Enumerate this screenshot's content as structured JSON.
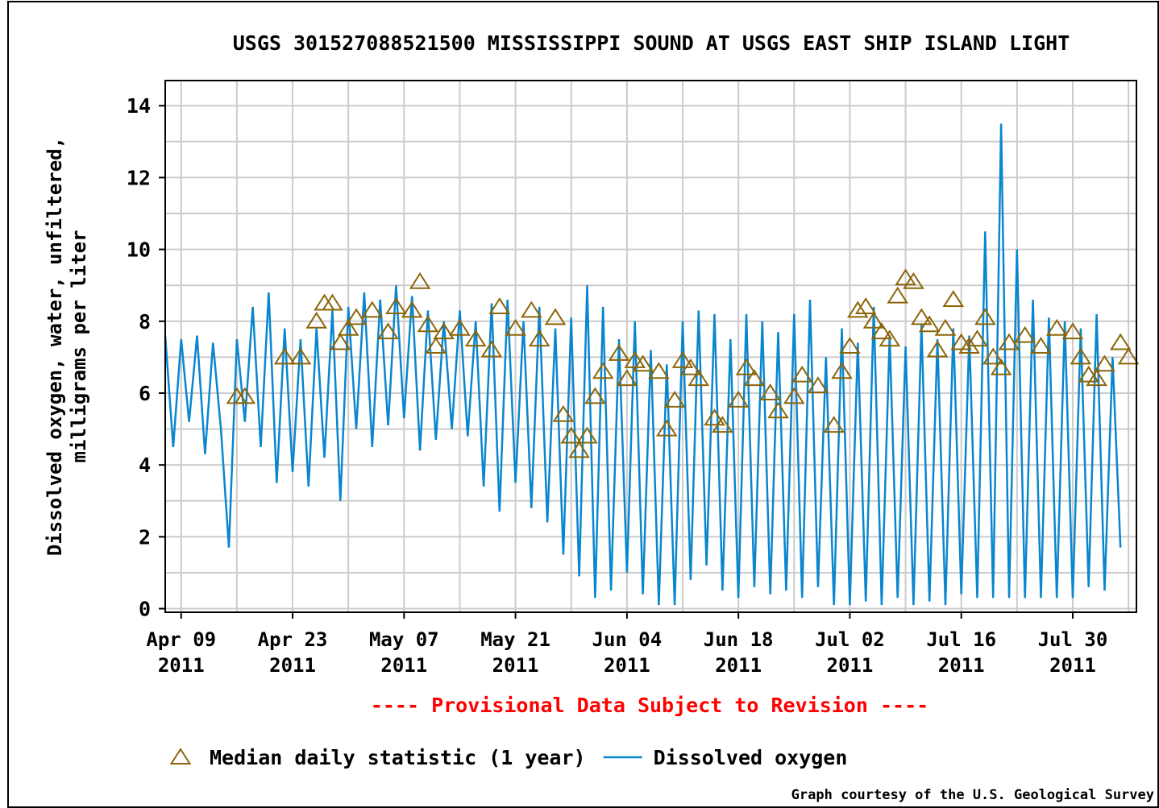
{
  "chart_data": {
    "type": "line",
    "title": "USGS 301527088521500 MISSISSIPPI SOUND AT USGS EAST SHIP ISLAND LIGHT",
    "ylabel": "Dissolved oxygen, water, unfiltered,\nmilligrams per liter",
    "note": "---- Provisional Data Subject to Revision ----",
    "credit": "Graph courtesy of the U.S. Geological Survey",
    "xlim": [
      "2011-04-07",
      "2011-08-07"
    ],
    "xticks": [
      {
        "value": "2011-04-09",
        "label": "Apr 09\n2011"
      },
      {
        "value": "2011-04-23",
        "label": "Apr 23\n2011"
      },
      {
        "value": "2011-05-07",
        "label": "May 07\n2011"
      },
      {
        "value": "2011-05-21",
        "label": "May 21\n2011"
      },
      {
        "value": "2011-06-04",
        "label": "Jun 04\n2011"
      },
      {
        "value": "2011-06-18",
        "label": "Jun 18\n2011"
      },
      {
        "value": "2011-07-02",
        "label": "Jul 02\n2011"
      },
      {
        "value": "2011-07-16",
        "label": "Jul 16\n2011"
      },
      {
        "value": "2011-07-30",
        "label": "Jul 30\n2011"
      }
    ],
    "ylim": [
      -0.1,
      14.7
    ],
    "yticks": [
      0,
      2,
      4,
      6,
      8,
      10,
      12,
      14
    ],
    "grid": true,
    "series": [
      {
        "name": "Median daily statistic (1 year)",
        "color": "#8b6508",
        "marker": "triangle",
        "x": [
          "2011-04-16",
          "2011-04-17",
          "2011-04-22",
          "2011-04-24",
          "2011-04-26",
          "2011-04-27",
          "2011-04-28",
          "2011-04-29",
          "2011-04-30",
          "2011-05-01",
          "2011-05-03",
          "2011-05-05",
          "2011-05-06",
          "2011-05-08",
          "2011-05-09",
          "2011-05-10",
          "2011-05-11",
          "2011-05-12",
          "2011-05-14",
          "2011-05-16",
          "2011-05-18",
          "2011-05-19",
          "2011-05-21",
          "2011-05-23",
          "2011-05-24",
          "2011-05-26",
          "2011-05-27",
          "2011-05-28",
          "2011-05-29",
          "2011-05-30",
          "2011-05-31",
          "2011-06-01",
          "2011-06-03",
          "2011-06-04",
          "2011-06-05",
          "2011-06-06",
          "2011-06-08",
          "2011-06-09",
          "2011-06-10",
          "2011-06-11",
          "2011-06-12",
          "2011-06-13",
          "2011-06-15",
          "2011-06-16",
          "2011-06-18",
          "2011-06-19",
          "2011-06-20",
          "2011-06-22",
          "2011-06-23",
          "2011-06-25",
          "2011-06-26",
          "2011-06-28",
          "2011-06-30",
          "2011-07-01",
          "2011-07-02",
          "2011-07-03",
          "2011-07-04",
          "2011-07-05",
          "2011-07-06",
          "2011-07-07",
          "2011-07-08",
          "2011-07-09",
          "2011-07-10",
          "2011-07-11",
          "2011-07-12",
          "2011-07-13",
          "2011-07-14",
          "2011-07-15",
          "2011-07-16",
          "2011-07-17",
          "2011-07-18",
          "2011-07-19",
          "2011-07-20",
          "2011-07-21",
          "2011-07-22",
          "2011-07-24",
          "2011-07-26",
          "2011-07-28",
          "2011-07-30",
          "2011-07-31",
          "2011-08-01",
          "2011-08-02",
          "2011-08-03",
          "2011-08-05",
          "2011-08-06"
        ],
        "values": [
          5.9,
          5.9,
          7.0,
          7.0,
          8.0,
          8.5,
          8.5,
          7.4,
          7.8,
          8.1,
          8.3,
          7.7,
          8.4,
          8.3,
          9.1,
          7.9,
          7.3,
          7.7,
          7.8,
          7.5,
          7.2,
          8.4,
          7.8,
          8.3,
          7.5,
          8.1,
          5.4,
          4.8,
          4.4,
          4.8,
          5.9,
          6.6,
          7.1,
          6.4,
          6.9,
          6.8,
          6.6,
          5.0,
          5.8,
          6.9,
          6.7,
          6.4,
          5.3,
          5.1,
          5.8,
          6.7,
          6.4,
          6.0,
          5.5,
          5.9,
          6.5,
          6.2,
          5.1,
          6.6,
          7.3,
          8.3,
          8.4,
          8.0,
          7.7,
          7.5,
          8.7,
          9.2,
          9.1,
          8.1,
          7.9,
          7.2,
          7.8,
          8.6,
          7.4,
          7.3,
          7.5,
          8.1,
          7.0,
          6.7,
          7.4,
          7.6,
          7.3,
          7.8,
          7.7,
          7.0,
          6.5,
          6.4,
          6.8,
          7.4,
          7.0
        ]
      },
      {
        "name": "Dissolved oxygen",
        "color": "#0a86cf",
        "x": [
          "2011-04-07",
          "2011-04-08",
          "2011-04-09",
          "2011-04-10",
          "2011-04-11",
          "2011-04-12",
          "2011-04-13",
          "2011-04-14",
          "2011-04-15",
          "2011-04-16",
          "2011-04-17",
          "2011-04-18",
          "2011-04-19",
          "2011-04-20",
          "2011-04-21",
          "2011-04-22",
          "2011-04-23",
          "2011-04-24",
          "2011-04-25",
          "2011-04-26",
          "2011-04-27",
          "2011-04-28",
          "2011-04-29",
          "2011-04-30",
          "2011-05-01",
          "2011-05-02",
          "2011-05-03",
          "2011-05-04",
          "2011-05-05",
          "2011-05-06",
          "2011-05-07",
          "2011-05-08",
          "2011-05-09",
          "2011-05-10",
          "2011-05-11",
          "2011-05-12",
          "2011-05-13",
          "2011-05-14",
          "2011-05-15",
          "2011-05-16",
          "2011-05-17",
          "2011-05-18",
          "2011-05-19",
          "2011-05-20",
          "2011-05-21",
          "2011-05-22",
          "2011-05-23",
          "2011-05-24",
          "2011-05-25",
          "2011-05-26",
          "2011-05-27",
          "2011-05-28",
          "2011-05-29",
          "2011-05-30",
          "2011-05-31",
          "2011-06-01",
          "2011-06-02",
          "2011-06-03",
          "2011-06-04",
          "2011-06-05",
          "2011-06-06",
          "2011-06-07",
          "2011-06-08",
          "2011-06-09",
          "2011-06-10",
          "2011-06-11",
          "2011-06-12",
          "2011-06-13",
          "2011-06-14",
          "2011-06-15",
          "2011-06-16",
          "2011-06-17",
          "2011-06-18",
          "2011-06-19",
          "2011-06-20",
          "2011-06-21",
          "2011-06-22",
          "2011-06-23",
          "2011-06-24",
          "2011-06-25",
          "2011-06-26",
          "2011-06-27",
          "2011-06-28",
          "2011-06-29",
          "2011-06-30",
          "2011-07-01",
          "2011-07-02",
          "2011-07-03",
          "2011-07-04",
          "2011-07-05",
          "2011-07-06",
          "2011-07-07",
          "2011-07-08",
          "2011-07-09",
          "2011-07-10",
          "2011-07-11",
          "2011-07-12",
          "2011-07-13",
          "2011-07-14",
          "2011-07-15",
          "2011-07-16",
          "2011-07-17",
          "2011-07-18",
          "2011-07-19",
          "2011-07-20",
          "2011-07-21",
          "2011-07-22",
          "2011-07-23",
          "2011-07-24",
          "2011-07-25",
          "2011-07-26",
          "2011-07-27",
          "2011-07-28",
          "2011-07-29",
          "2011-07-30",
          "2011-07-31",
          "2011-08-01",
          "2011-08-02",
          "2011-08-03",
          "2011-08-04",
          "2011-08-05"
        ],
        "values": [
          7.6,
          4.5,
          7.5,
          5.2,
          7.6,
          4.3,
          7.4,
          5.0,
          1.7,
          7.5,
          5.2,
          8.4,
          4.5,
          8.8,
          3.5,
          7.8,
          3.8,
          7.5,
          3.4,
          7.8,
          4.2,
          8.3,
          3.0,
          8.4,
          5.0,
          8.8,
          4.5,
          8.6,
          5.1,
          9.0,
          5.3,
          8.7,
          4.4,
          8.3,
          4.7,
          8.0,
          5.0,
          8.3,
          4.8,
          8.0,
          3.4,
          8.5,
          2.7,
          8.6,
          3.5,
          8.0,
          2.8,
          8.4,
          2.4,
          7.8,
          1.5,
          8.1,
          0.9,
          9.0,
          0.3,
          8.4,
          0.5,
          7.5,
          1.0,
          8.0,
          0.4,
          7.2,
          0.1,
          6.8,
          0.1,
          8.0,
          0.8,
          8.3,
          1.2,
          8.2,
          0.5,
          7.5,
          0.3,
          8.2,
          0.6,
          8.0,
          0.4,
          7.7,
          0.5,
          8.2,
          0.3,
          8.6,
          0.6,
          7.0,
          0.1,
          7.8,
          0.1,
          7.4,
          0.2,
          8.4,
          0.1,
          7.6,
          0.3,
          7.3,
          0.1,
          7.9,
          0.2,
          7.5,
          0.1,
          7.8,
          0.4,
          7.6,
          0.3,
          10.5,
          0.3,
          13.5,
          0.3,
          10.0,
          0.3,
          8.6,
          0.3,
          8.1,
          0.3,
          8.0,
          0.3,
          7.8,
          0.6,
          8.2,
          0.5,
          7.0,
          1.7
        ]
      }
    ]
  }
}
